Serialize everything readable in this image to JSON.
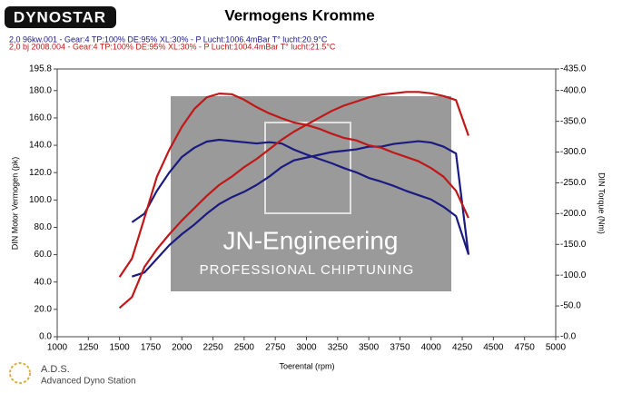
{
  "chart_data": {
    "type": "line",
    "logo": "DYNOSTAR",
    "title": "Vermogens Kromme",
    "legend": [
      "2,0 96kw.001 - Gear:4 TP:100% DE:95% XL:30%   - P Lucht:1006.4mBar T° lucht:20.9°C",
      "2,0 bj 2008.004 - Gear:4 TP:100% DE:95% XL:30%    - P Lucht:1004.4mBar T° lucht:21.5°C"
    ],
    "ylabel": "DIN Motor Vermogen (pk)",
    "y2label": "DIN Torque (Nm)",
    "xlabel": "Toerental (rpm)",
    "watermark": [
      "JN-Engineering",
      "PROFESSIONAL CHIPTUNING"
    ],
    "footer": [
      "A.D.S.",
      "Advanced Dyno Station"
    ],
    "xlim": [
      1000,
      5000
    ],
    "xticks": [
      1000,
      1250,
      1500,
      1750,
      2000,
      2250,
      2500,
      2750,
      3000,
      3250,
      3500,
      3750,
      4000,
      4250,
      4500,
      4750,
      5000
    ],
    "ylim": [
      0,
      195.8
    ],
    "yticks": [
      {
        "value": 0,
        "label": "0.0"
      },
      {
        "value": 20,
        "label": "20.0"
      },
      {
        "value": 40,
        "label": "40.0"
      },
      {
        "value": 60,
        "label": "60.0"
      },
      {
        "value": 80,
        "label": "80.0"
      },
      {
        "value": 100,
        "label": "100.0"
      },
      {
        "value": 120,
        "label": "120.0"
      },
      {
        "value": 140,
        "label": "140.0"
      },
      {
        "value": 160,
        "label": "160.0"
      },
      {
        "value": 180,
        "label": "180.0"
      },
      {
        "value": 195.8,
        "label": "195.8"
      }
    ],
    "y2lim": [
      0,
      435
    ],
    "y2ticks": [
      {
        "value": 0,
        "label": "-0.0"
      },
      {
        "value": 50,
        "label": "-50.0"
      },
      {
        "value": 100,
        "label": "-100.0"
      },
      {
        "value": 150,
        "label": "-150.0"
      },
      {
        "value": 200,
        "label": "-200.0"
      },
      {
        "value": 250,
        "label": "-250.0"
      },
      {
        "value": 300,
        "label": "-300.0"
      },
      {
        "value": 350,
        "label": "-350.0"
      },
      {
        "value": 400,
        "label": "-400.0"
      },
      {
        "value": 435,
        "label": "-435.0"
      }
    ],
    "x": [
      1500,
      1600,
      1700,
      1800,
      1900,
      2000,
      2100,
      2200,
      2300,
      2400,
      2500,
      2600,
      2700,
      2800,
      2900,
      3000,
      3100,
      3200,
      3300,
      3400,
      3500,
      3600,
      3700,
      3800,
      3900,
      4000,
      4100,
      4200,
      4300
    ],
    "series": [
      {
        "name": "2,0 96kw.001",
        "color": "#1a1a80",
        "values": [
          null,
          44,
          47,
          57,
          67,
          75,
          82,
          90,
          97,
          102,
          106,
          111,
          117,
          124,
          129,
          131,
          133,
          135,
          136,
          137,
          139,
          139,
          141,
          142,
          143,
          142,
          139,
          134,
          60
        ]
      },
      {
        "color": "#1a1a80",
        "axis": "y2",
        "values": [
          null,
          186,
          200,
          237,
          267,
          292,
          307,
          317,
          320,
          318,
          316,
          314,
          316,
          314,
          304,
          296,
          289,
          282,
          274,
          267,
          258,
          252,
          245,
          237,
          230,
          223,
          211,
          196,
          134
        ]
      },
      {
        "name": "2,0 bj 2008.004",
        "color": "#c01818",
        "values": [
          21,
          29,
          51,
          64,
          75,
          85,
          94,
          103,
          111,
          117,
          124,
          130,
          137,
          144,
          150,
          155,
          160,
          165,
          169,
          172,
          175,
          177,
          178,
          179,
          179,
          178,
          176,
          173,
          147
        ]
      },
      {
        "color": "#c01818",
        "axis": "y2",
        "values": [
          97,
          127,
          193,
          260,
          304,
          341,
          370,
          389,
          395,
          394,
          385,
          373,
          363,
          355,
          348,
          344,
          338,
          330,
          323,
          319,
          311,
          307,
          299,
          292,
          285,
          274,
          260,
          237,
          193
        ]
      }
    ]
  }
}
